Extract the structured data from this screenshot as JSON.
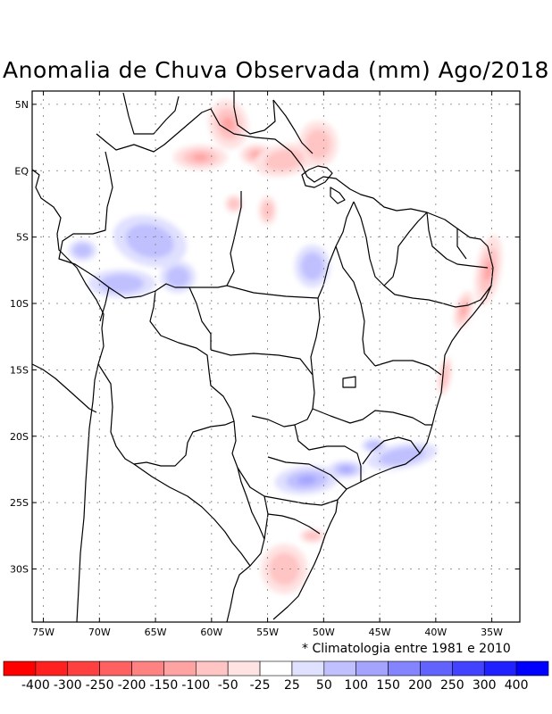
{
  "title": "Anomalia de Chuva Observada (mm) Ago/2018",
  "note": "* Climatologia entre 1981 e 2010",
  "map": {
    "region": "South America / Brazil",
    "lon_range": [
      -76,
      -32.5
    ],
    "lat_range": [
      -34,
      6
    ],
    "lat_ticks": [
      {
        "lat": 5,
        "label": "5N"
      },
      {
        "lat": 0,
        "label": "EQ"
      },
      {
        "lat": -5,
        "label": "5S"
      },
      {
        "lat": -10,
        "label": "10S"
      },
      {
        "lat": -15,
        "label": "15S"
      },
      {
        "lat": -20,
        "label": "20S"
      },
      {
        "lat": -25,
        "label": "25S"
      },
      {
        "lat": -30,
        "label": "30S"
      }
    ],
    "lon_ticks": [
      {
        "lon": -75,
        "label": "75W"
      },
      {
        "lon": -70,
        "label": "70W"
      },
      {
        "lon": -65,
        "label": "65W"
      },
      {
        "lon": -60,
        "label": "60W"
      },
      {
        "lon": -55,
        "label": "55W"
      },
      {
        "lon": -50,
        "label": "50W"
      },
      {
        "lon": -45,
        "label": "45W"
      },
      {
        "lon": -40,
        "label": "40W"
      },
      {
        "lon": -35,
        "label": "35W"
      }
    ]
  },
  "anomalies": [
    {
      "sign": "negative",
      "region": "Roraima",
      "lon": -59.5,
      "lat": 2.5,
      "level": 3
    },
    {
      "sign": "negative",
      "region": "Amapa / north Para",
      "lon": -51.5,
      "lat": 0.5,
      "level": 2
    },
    {
      "sign": "negative",
      "region": "Pernambuco / Alagoas coast",
      "lon": -35.5,
      "lat": -8.5,
      "level": 3
    },
    {
      "sign": "negative",
      "region": "Bahia coast",
      "lon": -39.3,
      "lat": -16.0,
      "level": 2
    },
    {
      "sign": "negative",
      "region": "Rio Grande do Sul",
      "lon": -53.0,
      "lat": -30.0,
      "level": 2
    },
    {
      "sign": "positive",
      "region": "western Amazonas",
      "lon": -65.5,
      "lat": -5.0,
      "level": 2
    },
    {
      "sign": "positive",
      "region": "central Para",
      "lon": -51.0,
      "lat": -7.5,
      "level": 2
    },
    {
      "sign": "positive",
      "region": "Parana / Sao Paulo",
      "lon": -51.5,
      "lat": -23.5,
      "level": 3
    },
    {
      "sign": "positive",
      "region": "south Minas Gerais",
      "lon": -43.5,
      "lat": -21.5,
      "level": 2
    }
  ],
  "legend": {
    "colors": [
      "#ff0000",
      "#ff2020",
      "#ff4040",
      "#ff6161",
      "#ff8282",
      "#ffa2a2",
      "#ffc4c4",
      "#ffe2e2",
      "#ffffff",
      "#e0e0ff",
      "#c0c0ff",
      "#a4a4ff",
      "#8484ff",
      "#6262ff",
      "#4242ff",
      "#2121ff",
      "#0000ff"
    ],
    "labels": [
      "-400",
      "-300",
      "-250",
      "-200",
      "-150",
      "-100",
      "-50",
      "-25",
      "25",
      "50",
      "100",
      "150",
      "200",
      "250",
      "300",
      "400"
    ]
  }
}
